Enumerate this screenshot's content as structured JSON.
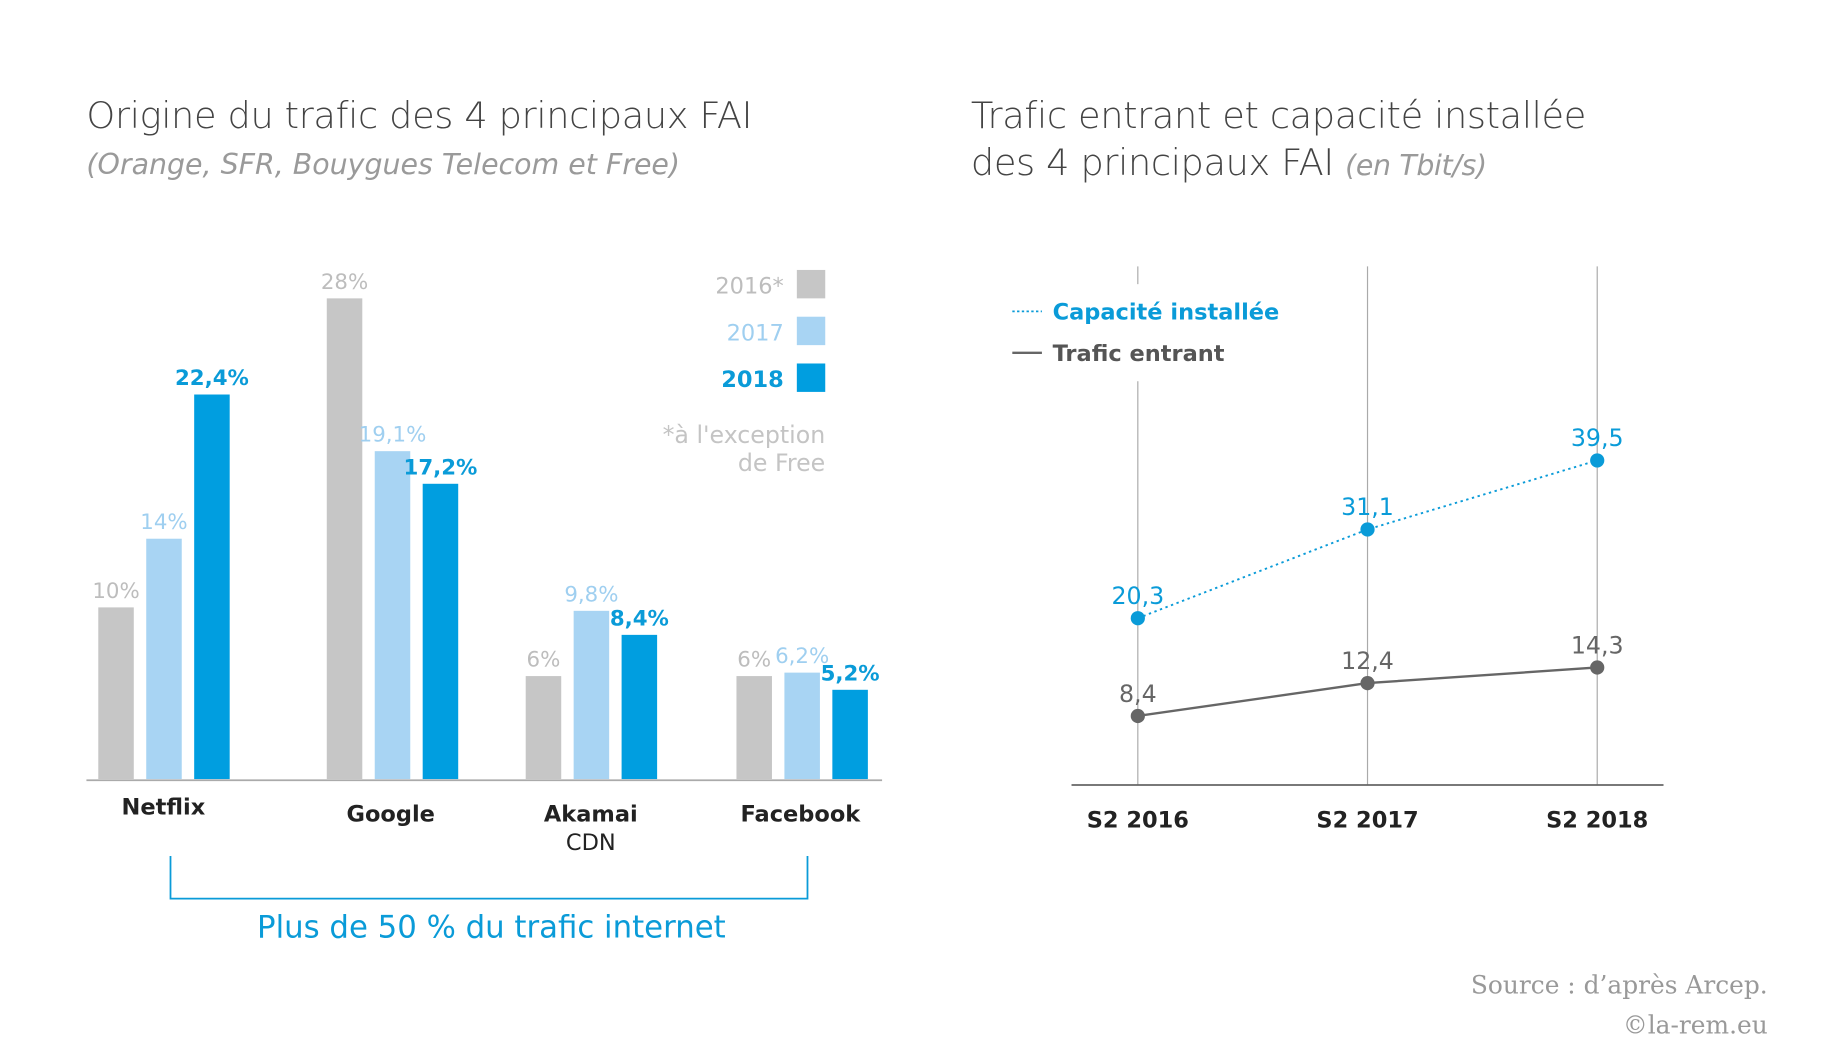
{
  "left": {
    "title": "Origine du trafic des 4 principaux FAI",
    "subtitle": "(Orange, SFR, Bouygues Telecom et Free)",
    "bracket_label": "Plus de 50 % du trafic internet",
    "footnote": [
      "*à l'exception",
      "de Free"
    ]
  },
  "right": {
    "title_line1": "Trafic entrant et capacité installée",
    "title_line2": "des 4 principaux FAI",
    "unit": "(en Tbit/s)"
  },
  "source": "Source : d’après Arcep.",
  "copyright": "©la-rem.eu",
  "colors": {
    "y2016": "#c6c6c6",
    "y2017": "#a8d4f3",
    "y2018": "#009ee0",
    "label2016": "#bdbdbd",
    "label2017": "#9fcff0",
    "label2018": "#0a9bd8",
    "traffic": "#666666",
    "capacity": "#0a9bd8"
  },
  "chart_data": [
    {
      "type": "bar",
      "title": "Origine du trafic des 4 principaux FAI",
      "categories": [
        "Netflix",
        "Google",
        "Akamai",
        "Facebook"
      ],
      "category_sublabels": [
        "",
        "",
        "CDN",
        ""
      ],
      "series": [
        {
          "name": "2016*",
          "values": [
            10,
            28,
            6,
            6
          ],
          "labels": [
            "10%",
            "28%",
            "6%",
            "6%"
          ]
        },
        {
          "name": "2017",
          "values": [
            14,
            19.1,
            9.8,
            6.2
          ],
          "labels": [
            "14%",
            "19,1%",
            "9,8%",
            "6,2%"
          ]
        },
        {
          "name": "2018",
          "values": [
            22.4,
            17.2,
            8.4,
            5.2
          ],
          "labels": [
            "22,4%",
            "17,2%",
            "8,4%",
            "5,2%"
          ]
        }
      ],
      "ylabel": "%",
      "ylim": [
        0,
        30
      ],
      "grid": false,
      "legend": "top-right"
    },
    {
      "type": "line",
      "title": "Trafic entrant et capacité installée des 4 principaux FAI (en Tbit/s)",
      "x": [
        "S2 2016",
        "S2 2017",
        "S2 2018"
      ],
      "series": [
        {
          "name": "Capacité installée",
          "values": [
            20.3,
            31.1,
            39.5
          ],
          "labels": [
            "20,3",
            "31,1",
            "39,5"
          ],
          "style": "dotted"
        },
        {
          "name": "Trafic entrant",
          "values": [
            8.4,
            12.4,
            14.3
          ],
          "labels": [
            "8,4",
            "12,4",
            "14,3"
          ],
          "style": "solid"
        }
      ],
      "ylim": [
        0,
        63
      ],
      "grid": "vertical",
      "legend": "top-left"
    }
  ]
}
